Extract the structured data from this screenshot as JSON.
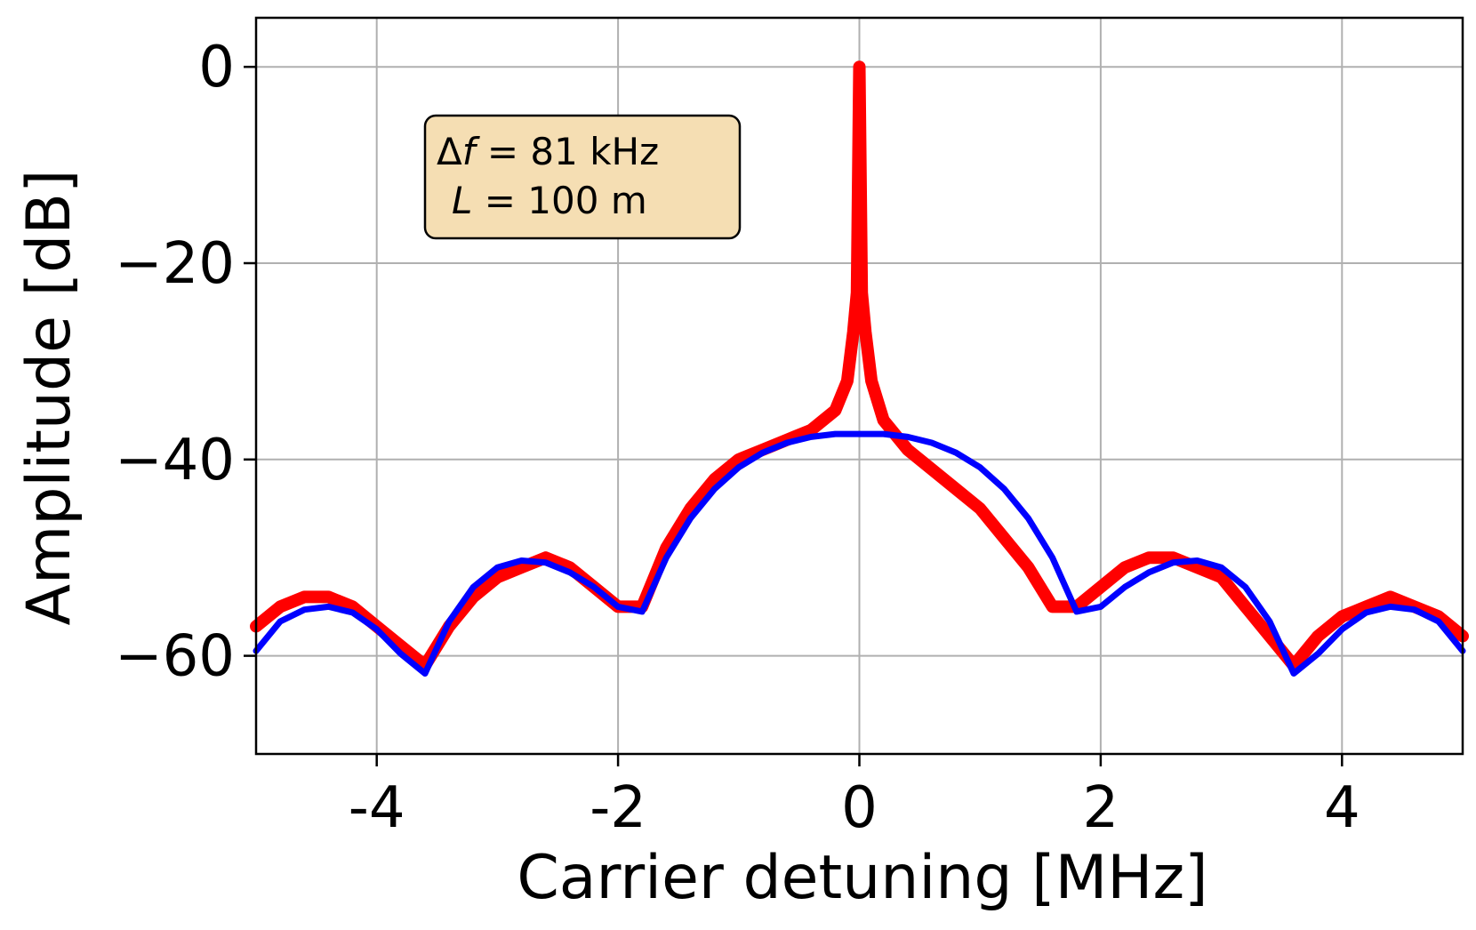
{
  "chart_data": {
    "type": "line",
    "xlabel": "Carrier detuning [MHz]",
    "ylabel": "Amplitude [dB]",
    "xlim": [
      -5,
      5
    ],
    "ylim": [
      -70,
      5
    ],
    "grid": true,
    "x_ticks": [
      {
        "value": -4,
        "label": "-4"
      },
      {
        "value": -2,
        "label": "-2"
      },
      {
        "value": 0,
        "label": "0"
      },
      {
        "value": 2,
        "label": "2"
      },
      {
        "value": 4,
        "label": "4"
      }
    ],
    "y_ticks": [
      {
        "value": 0,
        "label": "0"
      },
      {
        "value": -20,
        "label": "−20"
      },
      {
        "value": -40,
        "label": "−40"
      },
      {
        "value": -60,
        "label": "−60"
      }
    ],
    "annotation": {
      "line1_prefix": "Δ",
      "line1_var": "f",
      "line1_rest": " = 81 kHz",
      "line2_var": "L",
      "line2_rest": " = 100 m",
      "background": "#f5deb3"
    },
    "series": [
      {
        "color": "#ff0000",
        "x": [
          -5.0,
          -4.8,
          -4.6,
          -4.4,
          -4.2,
          -4.0,
          -3.8,
          -3.6,
          -3.4,
          -3.2,
          -3.0,
          -2.8,
          -2.6,
          -2.4,
          -2.2,
          -2.0,
          -1.8,
          -1.6,
          -1.4,
          -1.2,
          -1.0,
          -0.8,
          -0.6,
          -0.4,
          -0.2,
          -0.1,
          -0.05,
          -0.02,
          0.0,
          0.02,
          0.05,
          0.1,
          0.2,
          0.4,
          0.6,
          0.8,
          1.0,
          1.2,
          1.4,
          1.6,
          1.8,
          2.0,
          2.2,
          2.4,
          2.6,
          2.8,
          3.0,
          3.2,
          3.4,
          3.6,
          3.8,
          4.0,
          4.2,
          4.4,
          4.6,
          4.8,
          5.0
        ],
        "y": [
          -57,
          -55,
          -54,
          -54,
          -55,
          -57,
          -59,
          -61,
          -57,
          -54,
          -52,
          -51,
          -50,
          -51,
          -53,
          -55,
          -55,
          -49,
          -45,
          -42,
          -40,
          -39,
          -38,
          -37,
          -35,
          -32,
          -27,
          -23,
          0,
          -23,
          -27,
          -32,
          -36,
          -39,
          -41,
          -43,
          -45,
          -48,
          -51,
          -55,
          -55,
          -53,
          -51,
          -50,
          -50,
          -51,
          -52,
          -55,
          -58,
          -61,
          -58,
          -56,
          -55,
          -54,
          -55,
          -56,
          -58
        ]
      },
      {
        "color": "#0000ff",
        "x": [
          -5.0,
          -4.8,
          -4.6,
          -4.4,
          -4.2,
          -4.0,
          -3.8,
          -3.6,
          -3.4,
          -3.2,
          -3.0,
          -2.8,
          -2.6,
          -2.4,
          -2.2,
          -2.0,
          -1.8,
          -1.6,
          -1.4,
          -1.2,
          -1.0,
          -0.8,
          -0.6,
          -0.4,
          -0.2,
          0.0,
          0.2,
          0.4,
          0.6,
          0.8,
          1.0,
          1.2,
          1.4,
          1.6,
          1.8,
          2.0,
          2.2,
          2.4,
          2.6,
          2.8,
          3.0,
          3.2,
          3.4,
          3.6,
          3.8,
          4.0,
          4.2,
          4.4,
          4.6,
          4.8,
          5.0
        ],
        "y": [
          -59.5,
          -56.5,
          -55.3,
          -55,
          -55.6,
          -57.3,
          -59.8,
          -61.8,
          -56.5,
          -53,
          -51,
          -50.3,
          -50.5,
          -51.5,
          -53,
          -55,
          -55.5,
          -50,
          -46,
          -43,
          -40.8,
          -39.3,
          -38.3,
          -37.7,
          -37.4,
          -37.4,
          -37.4,
          -37.7,
          -38.3,
          -39.3,
          -40.8,
          -43,
          -46,
          -50,
          -55.5,
          -55,
          -53,
          -51.5,
          -50.5,
          -50.3,
          -51,
          -53,
          -56.5,
          -61.8,
          -59.8,
          -57.3,
          -55.6,
          -55,
          -55.3,
          -56.5,
          -59.5
        ]
      }
    ]
  }
}
